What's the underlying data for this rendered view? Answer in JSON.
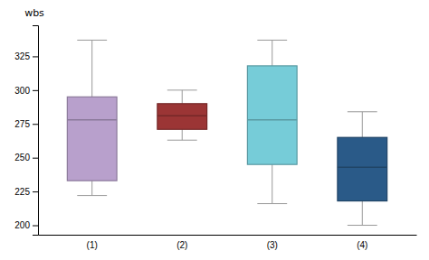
{
  "chart_data": {
    "type": "box",
    "ylabel": "wbs",
    "categories": [
      "(1)",
      "(2)",
      "(3)",
      "(4)"
    ],
    "whisker_low": [
      222,
      263,
      216,
      200
    ],
    "q1": [
      233,
      271,
      245,
      218
    ],
    "median": [
      278,
      281,
      278,
      243
    ],
    "q3": [
      295,
      290,
      318,
      265
    ],
    "whisker_high": [
      337,
      300,
      337,
      284
    ],
    "colors": [
      "#b8a0cc",
      "#9b3535",
      "#76ccd8",
      "#2a5a88"
    ],
    "ylim": [
      193,
      348
    ],
    "yticks": [
      200,
      225,
      250,
      275,
      300,
      325
    ],
    "grid": false
  }
}
